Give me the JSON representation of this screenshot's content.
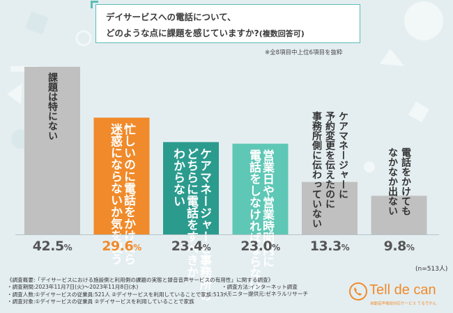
{
  "title": {
    "line1": "デイサービスへの電話について、",
    "line2": "どのような点に課題を感じていますか?",
    "line2_small": "(複数回答可)"
  },
  "subnote": "※全8項目中上位6項目を抜粋",
  "n_label": "(n=513人)",
  "colors": {
    "background": "#e4eef1",
    "accent_teal": "#5bbdb3",
    "orange": "#f08a2a",
    "teal_dark": "#2b9b8e",
    "teal_light": "#5ec7b5",
    "gray": "#c0c0c0"
  },
  "chart_data": {
    "type": "bar",
    "categories": [
      "課題は特にない",
      "忙しいのに電話をかけたら迷惑にならないか気を使う",
      "ケアマネージャーと事務所のどちらに電話をすべきかわからない",
      "営業日や営業時間内に電話をしなければならない",
      "ケアマネージャーに予約変更を伝えたのに事務所側に伝わっていない",
      "電話をかけてもなかなか出ない"
    ],
    "label_lines": [
      [
        "課題は特にない"
      ],
      [
        "忙しいのに電話をかけたら",
        "迷惑にならないか気を使う"
      ],
      [
        "ケアマネージャーと事務所の",
        "どちらに電話をすべきか",
        "わからない"
      ],
      [
        "営業日や営業時間内に",
        "電話をしなければならない"
      ],
      [
        "ケアマネージャーに",
        "予約変更を伝えたのに",
        "事務所側に伝わっていない"
      ],
      [
        "電話をかけても",
        "なかなか出ない"
      ]
    ],
    "values": [
      42.5,
      29.6,
      23.4,
      23.0,
      13.3,
      9.8
    ],
    "unit": "%",
    "bar_colors": [
      "#c0c0c0",
      "#f08a2a",
      "#2b9b8e",
      "#5ec7b5",
      "#c0c0c0",
      "#c0c0c0"
    ],
    "value_colors": [
      "#555555",
      "#f08a2a",
      "#555555",
      "#555555",
      "#555555",
      "#555555"
    ],
    "ylim": [
      0,
      42.5
    ],
    "grid": false
  },
  "footer": {
    "lines": [
      "《調査概要:「デイサービスにおける施設側と利用側の課題の実態と録音音声サービスの有用性」に関する調査》",
      "・調査期間:2023年11月7日(火)〜2023年11月8日(水)",
      "・調査人数:①デイサービスの従業員:521人 ②デイサービスを利用していることで家族:513人",
      "・調査対象:①デイサービスの従業員 ②デイサービスを利用していることで家族"
    ],
    "right_lines": [
      "・調査方法:インターネット調査",
      "",
      "・モニター提供元:ゼネラルリサーチ"
    ]
  },
  "logo": {
    "name": "Tell de can",
    "tagline": "自動音声電話対応サービス てるでかん",
    "icon": "phone-icon"
  }
}
